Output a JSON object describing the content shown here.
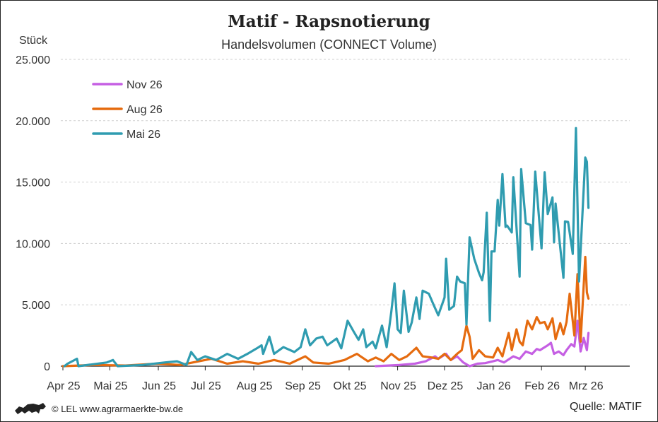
{
  "chart_data": {
    "type": "line",
    "title": "Matif - Rapsnotierung",
    "subtitle": "Handelsvolumen (CONNECT Volume)",
    "ylabel": "Stück",
    "ylim": [
      0,
      25000
    ],
    "yticks": [
      "0",
      "5.000",
      "10.000",
      "15.000",
      "20.000",
      "25.000"
    ],
    "ytick_values": [
      0,
      5000,
      10000,
      15000,
      20000,
      25000
    ],
    "x_unit": "days since 1 Apr 2025",
    "xlim": [
      0,
      362
    ],
    "xticks": [
      {
        "label": "Apr 25",
        "day": 0
      },
      {
        "label": "Mai 25",
        "day": 30
      },
      {
        "label": "Jun 25",
        "day": 61
      },
      {
        "label": "Jul 25",
        "day": 91
      },
      {
        "label": "Aug 25",
        "day": 122
      },
      {
        "label": "Sep 25",
        "day": 153
      },
      {
        "label": "Okt 25",
        "day": 183
      },
      {
        "label": "Nov 25",
        "day": 214
      },
      {
        "label": "Dez 25",
        "day": 244
      },
      {
        "label": "Jan 26",
        "day": 275
      },
      {
        "label": "Feb 26",
        "day": 306
      },
      {
        "label": "Mrz 26",
        "day": 334
      }
    ],
    "grid": true,
    "legend_position": "top-left",
    "series": [
      {
        "name": "Nov 26",
        "color": "#c55fe3",
        "points": [
          [
            200,
            0
          ],
          [
            215,
            100
          ],
          [
            225,
            200
          ],
          [
            232,
            400
          ],
          [
            238,
            800
          ],
          [
            240,
            600
          ],
          [
            245,
            1000
          ],
          [
            248,
            500
          ],
          [
            252,
            800
          ],
          [
            256,
            300
          ],
          [
            260,
            0
          ],
          [
            265,
            200
          ],
          [
            270,
            250
          ],
          [
            275,
            400
          ],
          [
            278,
            500
          ],
          [
            282,
            300
          ],
          [
            288,
            800
          ],
          [
            292,
            600
          ],
          [
            296,
            1200
          ],
          [
            300,
            1000
          ],
          [
            303,
            1400
          ],
          [
            305,
            1300
          ],
          [
            310,
            1700
          ],
          [
            312,
            1900
          ],
          [
            314,
            1000
          ],
          [
            317,
            1200
          ],
          [
            320,
            900
          ],
          [
            322,
            1300
          ],
          [
            325,
            1800
          ],
          [
            327,
            1600
          ],
          [
            329,
            3700
          ],
          [
            331,
            1200
          ],
          [
            333,
            2300
          ],
          [
            335,
            1300
          ],
          [
            336,
            2700
          ]
        ]
      },
      {
        "name": "Aug 26",
        "color": "#e56b0f",
        "points": [
          [
            0,
            0
          ],
          [
            20,
            100
          ],
          [
            40,
            50
          ],
          [
            60,
            200
          ],
          [
            75,
            100
          ],
          [
            85,
            350
          ],
          [
            95,
            600
          ],
          [
            105,
            200
          ],
          [
            115,
            400
          ],
          [
            125,
            200
          ],
          [
            135,
            500
          ],
          [
            145,
            200
          ],
          [
            155,
            800
          ],
          [
            160,
            300
          ],
          [
            170,
            200
          ],
          [
            180,
            500
          ],
          [
            188,
            1000
          ],
          [
            195,
            400
          ],
          [
            200,
            700
          ],
          [
            205,
            400
          ],
          [
            210,
            1000
          ],
          [
            215,
            500
          ],
          [
            220,
            800
          ],
          [
            226,
            1500
          ],
          [
            230,
            800
          ],
          [
            236,
            700
          ],
          [
            240,
            600
          ],
          [
            244,
            1000
          ],
          [
            248,
            500
          ],
          [
            252,
            1000
          ],
          [
            255,
            1300
          ],
          [
            258,
            3300
          ],
          [
            260,
            2400
          ],
          [
            262,
            600
          ],
          [
            266,
            1300
          ],
          [
            270,
            800
          ],
          [
            275,
            700
          ],
          [
            278,
            1500
          ],
          [
            281,
            800
          ],
          [
            285,
            2700
          ],
          [
            287,
            1300
          ],
          [
            290,
            3000
          ],
          [
            292,
            2000
          ],
          [
            294,
            1700
          ],
          [
            297,
            3700
          ],
          [
            300,
            3000
          ],
          [
            303,
            4000
          ],
          [
            305,
            3500
          ],
          [
            308,
            3600
          ],
          [
            310,
            3000
          ],
          [
            313,
            3900
          ],
          [
            315,
            2200
          ],
          [
            318,
            3500
          ],
          [
            320,
            2600
          ],
          [
            322,
            3600
          ],
          [
            324,
            5900
          ],
          [
            327,
            2500
          ],
          [
            329,
            7500
          ],
          [
            331,
            2000
          ],
          [
            334,
            8900
          ],
          [
            335,
            6000
          ],
          [
            336,
            5500
          ]
        ]
      },
      {
        "name": "Mai 26",
        "color": "#2f9cb0",
        "points": [
          [
            1,
            0
          ],
          [
            3,
            200
          ],
          [
            9,
            600
          ],
          [
            10,
            0
          ],
          [
            28,
            300
          ],
          [
            32,
            500
          ],
          [
            35,
            0
          ],
          [
            51,
            100
          ],
          [
            65,
            300
          ],
          [
            73,
            400
          ],
          [
            79,
            100
          ],
          [
            82,
            1150
          ],
          [
            86,
            500
          ],
          [
            91,
            800
          ],
          [
            98,
            500
          ],
          [
            105,
            1000
          ],
          [
            112,
            600
          ],
          [
            118,
            1000
          ],
          [
            124,
            1450
          ],
          [
            127,
            1700
          ],
          [
            128,
            1000
          ],
          [
            132,
            2400
          ],
          [
            135,
            1000
          ],
          [
            141,
            1550
          ],
          [
            148,
            1150
          ],
          [
            152,
            1550
          ],
          [
            155,
            3000
          ],
          [
            158,
            1700
          ],
          [
            162,
            2250
          ],
          [
            166,
            2400
          ],
          [
            169,
            1700
          ],
          [
            175,
            2250
          ],
          [
            178,
            1450
          ],
          [
            182,
            3700
          ],
          [
            186,
            2800
          ],
          [
            189,
            2150
          ],
          [
            192,
            3000
          ],
          [
            194,
            1550
          ],
          [
            198,
            2000
          ],
          [
            200,
            1450
          ],
          [
            204,
            3300
          ],
          [
            207,
            1550
          ],
          [
            210,
            4450
          ],
          [
            212,
            6750
          ],
          [
            214,
            3000
          ],
          [
            216,
            2700
          ],
          [
            218,
            6150
          ],
          [
            221,
            2800
          ],
          [
            223,
            3550
          ],
          [
            226,
            5600
          ],
          [
            228,
            3850
          ],
          [
            230,
            6150
          ],
          [
            234,
            5900
          ],
          [
            237,
            5000
          ],
          [
            240,
            4150
          ],
          [
            244,
            5600
          ],
          [
            245,
            8750
          ],
          [
            247,
            4600
          ],
          [
            250,
            4900
          ],
          [
            252,
            7300
          ],
          [
            254,
            6900
          ],
          [
            257,
            6750
          ],
          [
            258,
            3400
          ],
          [
            260,
            10500
          ],
          [
            263,
            8750
          ],
          [
            266,
            7600
          ],
          [
            268,
            7000
          ],
          [
            269,
            7650
          ],
          [
            271,
            12500
          ],
          [
            273,
            3700
          ],
          [
            274,
            9350
          ],
          [
            276,
            9350
          ],
          [
            278,
            13550
          ],
          [
            279,
            11450
          ],
          [
            281,
            15650
          ],
          [
            283,
            11350
          ],
          [
            284,
            11450
          ],
          [
            287,
            10900
          ],
          [
            288,
            15400
          ],
          [
            292,
            7300
          ],
          [
            293,
            16050
          ],
          [
            296,
            11650
          ],
          [
            299,
            11500
          ],
          [
            300,
            9500
          ],
          [
            302,
            15850
          ],
          [
            306,
            9600
          ],
          [
            308,
            15800
          ],
          [
            310,
            12400
          ],
          [
            313,
            13750
          ],
          [
            314,
            10100
          ],
          [
            315,
            13250
          ],
          [
            320,
            7200
          ],
          [
            321,
            11800
          ],
          [
            323,
            11750
          ],
          [
            326,
            9150
          ],
          [
            328,
            19400
          ],
          [
            330,
            6900
          ],
          [
            334,
            17000
          ],
          [
            335,
            16650
          ],
          [
            336,
            12900
          ]
        ]
      }
    ],
    "legend_order": [
      "Nov 26",
      "Aug 26",
      "Mai 26"
    ]
  },
  "footer": {
    "credit": "© LEL www.agrarmaerkte-bw.de",
    "source": "Quelle: MATIF",
    "logo": "Baden-Württemberg lion logo"
  }
}
